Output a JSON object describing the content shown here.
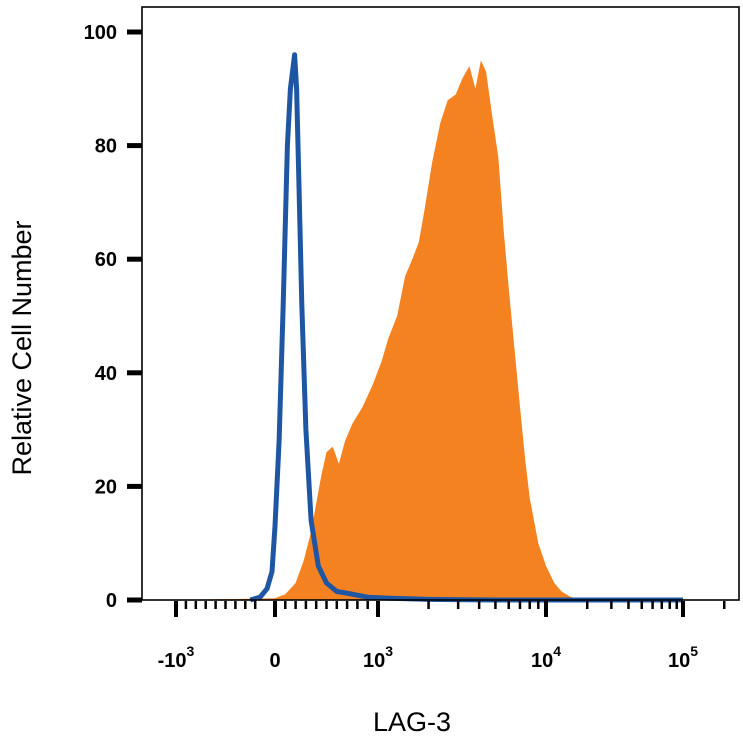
{
  "chart_data": {
    "type": "area",
    "title": "",
    "xlabel": "LAG-3",
    "ylabel": "Relative Cell Number",
    "xscale": "biexponential",
    "yticks": [
      0,
      20,
      40,
      60,
      80,
      100
    ],
    "ylim": [
      0,
      100
    ],
    "xticks": [
      {
        "value": -1000,
        "base": "-10",
        "exp": "3"
      },
      {
        "value": 0,
        "base": "0",
        "exp": ""
      },
      {
        "value": 1000,
        "base": "10",
        "exp": "3"
      },
      {
        "value": 10000,
        "base": "10",
        "exp": "4"
      },
      {
        "value": 100000,
        "base": "10",
        "exp": "5"
      }
    ],
    "series": [
      {
        "style": "outline",
        "color": "#1f56a3",
        "x": [
          -250,
          -150,
          -80,
          -30,
          0,
          40,
          80,
          120,
          150,
          170,
          190,
          210,
          230,
          260,
          300,
          350,
          420,
          500,
          600,
          700,
          900,
          1200,
          2000,
          5000,
          20000,
          100000
        ],
        "y": [
          0,
          0.5,
          2,
          5,
          13,
          28,
          52,
          80,
          90,
          93,
          96,
          90,
          75,
          52,
          30,
          14,
          6,
          3,
          1.5,
          1.2,
          0.5,
          0.3,
          0.1,
          0,
          0,
          0
        ]
      },
      {
        "style": "filled",
        "color": "#f58220",
        "x": [
          -1000,
          0,
          100,
          200,
          280,
          350,
          400,
          450,
          500,
          560,
          620,
          680,
          750,
          850,
          950,
          1050,
          1150,
          1300,
          1450,
          1600,
          1750,
          1900,
          2100,
          2350,
          2600,
          2900,
          3200,
          3500,
          3800,
          4100,
          4400,
          4800,
          5200,
          5600,
          6000,
          6500,
          7000,
          7500,
          8000,
          9000,
          10000,
          11500,
          13000,
          15000,
          17000,
          20000,
          100000
        ],
        "y": [
          0,
          0.3,
          1,
          3,
          7,
          12,
          17,
          22,
          26,
          27,
          24,
          28,
          31,
          34,
          38,
          42,
          46,
          50,
          57,
          60,
          63,
          69,
          77,
          84,
          88,
          89,
          92,
          94,
          90,
          95,
          93,
          85,
          78,
          65,
          55,
          44,
          34,
          25,
          18,
          10,
          6,
          3,
          1.5,
          0.6,
          0.2,
          0.05,
          0
        ]
      }
    ],
    "grid": false,
    "legend": "none"
  }
}
